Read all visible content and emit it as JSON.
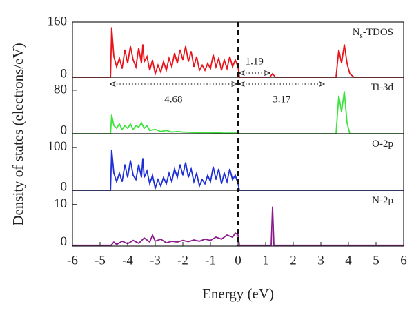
{
  "x_axis": {
    "xlim": [
      -6,
      6
    ],
    "xticks": [
      -6,
      -5,
      -4,
      -3,
      -2,
      -1,
      0,
      1,
      2,
      3,
      4,
      5,
      6
    ],
    "xlabel": "Energy (eV)"
  },
  "ylabel": "Density of states (electrons/eV)",
  "chart_data": [
    {
      "type": "line",
      "label_parts": [
        "N",
        "s",
        "-TDOS"
      ],
      "color": "#e8141b",
      "ylim": [
        0,
        160
      ],
      "yticks": [
        0,
        160
      ],
      "x": [
        -6,
        -4.62,
        -4.58,
        -4.5,
        -4.4,
        -4.3,
        -4.2,
        -4.1,
        -4.0,
        -3.9,
        -3.8,
        -3.7,
        -3.6,
        -3.5,
        -3.45,
        -3.4,
        -3.3,
        -3.2,
        -3.1,
        -3.0,
        -2.9,
        -2.8,
        -2.7,
        -2.6,
        -2.5,
        -2.4,
        -2.3,
        -2.2,
        -2.1,
        -2.0,
        -1.9,
        -1.8,
        -1.7,
        -1.6,
        -1.5,
        -1.4,
        -1.3,
        -1.2,
        -1.1,
        -1.0,
        -0.9,
        -0.8,
        -0.7,
        -0.6,
        -0.5,
        -0.4,
        -0.3,
        -0.2,
        -0.1,
        0,
        0.05,
        1.15,
        1.25,
        1.35,
        3.55,
        3.65,
        3.75,
        3.85,
        3.95,
        4.05,
        4.2,
        6
      ],
      "values": [
        0,
        0,
        145,
        60,
        30,
        55,
        25,
        80,
        40,
        90,
        50,
        30,
        85,
        40,
        95,
        45,
        60,
        20,
        50,
        10,
        35,
        15,
        45,
        20,
        55,
        30,
        70,
        40,
        80,
        50,
        90,
        45,
        75,
        30,
        60,
        20,
        35,
        20,
        40,
        25,
        65,
        30,
        55,
        20,
        50,
        25,
        60,
        30,
        50,
        30,
        0,
        0,
        10,
        0,
        0,
        80,
        40,
        95,
        40,
        10,
        0,
        0
      ],
      "annotations": [
        {
          "text": "1.19",
          "x0": 0,
          "x1": 1.19
        }
      ]
    },
    {
      "type": "line",
      "label_parts": [
        "Ti-3d"
      ],
      "color": "#3ee33e",
      "ylim": [
        0,
        104
      ],
      "yticks": [
        0,
        80
      ],
      "x": [
        -6,
        -4.62,
        -4.58,
        -4.5,
        -4.4,
        -4.3,
        -4.2,
        -4.1,
        -4.0,
        -3.9,
        -3.8,
        -3.7,
        -3.6,
        -3.5,
        -3.4,
        -3.3,
        -3.2,
        -3.0,
        -2.8,
        -2.6,
        -2.4,
        -2.2,
        -2.0,
        -1.5,
        -1.0,
        -0.5,
        0,
        0.05,
        3.55,
        3.65,
        3.75,
        3.85,
        3.95,
        4.05,
        6
      ],
      "values": [
        0,
        0,
        35,
        15,
        10,
        18,
        8,
        15,
        10,
        18,
        8,
        15,
        12,
        20,
        10,
        15,
        6,
        8,
        4,
        6,
        3,
        4,
        3,
        2,
        2,
        1,
        1,
        0,
        0,
        70,
        40,
        78,
        20,
        0,
        0
      ],
      "annotations": [
        {
          "text": "4.68",
          "x0": -4.68,
          "x1": 0
        },
        {
          "text": "3.17",
          "x0": 0,
          "x1": 3.17
        }
      ]
    },
    {
      "type": "line",
      "label_parts": [
        "O-2p"
      ],
      "color": "#1f2fd6",
      "ylim": [
        0,
        132
      ],
      "yticks": [
        0,
        100
      ],
      "x": [
        -6,
        -4.62,
        -4.58,
        -4.5,
        -4.4,
        -4.3,
        -4.2,
        -4.1,
        -4.0,
        -3.9,
        -3.8,
        -3.7,
        -3.6,
        -3.5,
        -3.45,
        -3.4,
        -3.3,
        -3.2,
        -3.1,
        -3.0,
        -2.9,
        -2.8,
        -2.7,
        -2.6,
        -2.5,
        -2.4,
        -2.3,
        -2.2,
        -2.1,
        -2.0,
        -1.9,
        -1.8,
        -1.7,
        -1.6,
        -1.5,
        -1.4,
        -1.3,
        -1.2,
        -1.1,
        -1.0,
        -0.9,
        -0.8,
        -0.7,
        -0.6,
        -0.5,
        -0.4,
        -0.3,
        -0.2,
        -0.1,
        0,
        0.05,
        6
      ],
      "values": [
        0,
        0,
        95,
        40,
        20,
        40,
        20,
        60,
        30,
        70,
        35,
        25,
        60,
        30,
        75,
        30,
        45,
        15,
        35,
        5,
        25,
        10,
        30,
        15,
        40,
        20,
        50,
        30,
        60,
        35,
        65,
        30,
        50,
        20,
        40,
        10,
        25,
        15,
        35,
        20,
        55,
        25,
        50,
        15,
        40,
        20,
        50,
        25,
        35,
        15,
        0,
        0
      ]
    },
    {
      "type": "line",
      "label_parts": [
        "N-2p"
      ],
      "color": "#8b1a8b",
      "ylim": [
        -0.2,
        13.5
      ],
      "yticks": [
        0,
        10
      ],
      "x": [
        -6,
        -4.6,
        -4.5,
        -4.4,
        -4.2,
        -4.0,
        -3.8,
        -3.6,
        -3.4,
        -3.2,
        -3.1,
        -3.0,
        -2.8,
        -2.6,
        -2.4,
        -2.2,
        -2.0,
        -1.8,
        -1.6,
        -1.4,
        -1.2,
        -1.0,
        -0.8,
        -0.6,
        -0.4,
        -0.2,
        -0.1,
        0,
        0.05,
        1.2,
        1.25,
        1.3,
        6
      ],
      "values": [
        0,
        0,
        0.8,
        0.2,
        1,
        0.4,
        1.2,
        0.5,
        1.8,
        0.8,
        2.5,
        1,
        1.5,
        0.6,
        1,
        0.8,
        1.2,
        0.9,
        1.3,
        1,
        1.5,
        1.2,
        2,
        1.5,
        2.5,
        2,
        3,
        2.5,
        0,
        0,
        9.5,
        0,
        0
      ]
    }
  ]
}
